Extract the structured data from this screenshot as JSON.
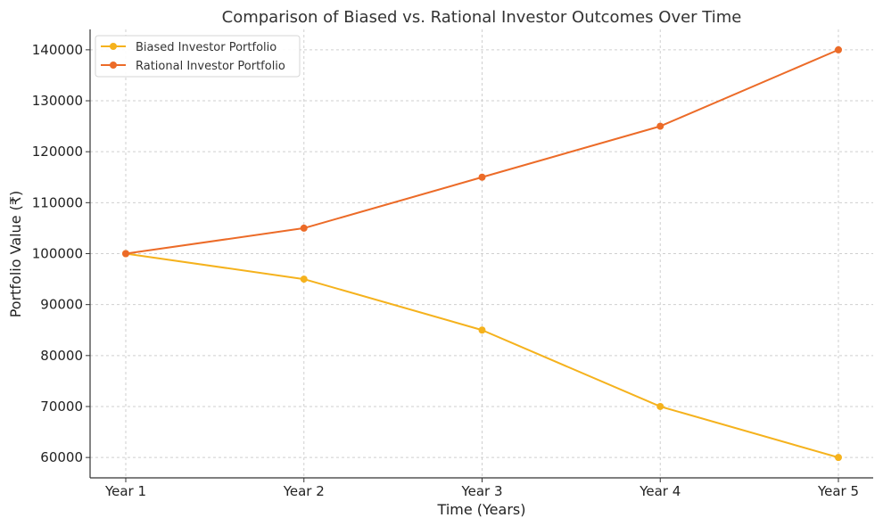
{
  "chart_data": {
    "type": "line",
    "title": "Comparison of Biased vs. Rational Investor Outcomes Over Time",
    "xlabel": "Time (Years)",
    "ylabel": "Portfolio Value (₹)",
    "categories": [
      "Year 1",
      "Year 2",
      "Year 3",
      "Year 4",
      "Year 5"
    ],
    "ylim": [
      56000,
      144000
    ],
    "yticks": [
      60000,
      70000,
      80000,
      90000,
      100000,
      110000,
      120000,
      130000,
      140000
    ],
    "ytick_labels": [
      "60000",
      "70000",
      "80000",
      "90000",
      "100000",
      "110000",
      "120000",
      "130000",
      "140000"
    ],
    "grid": true,
    "legend_position": "top-left",
    "series": [
      {
        "name": "Biased Investor Portfolio",
        "color": "#f5b21d",
        "marker": "circle",
        "values": [
          100000,
          95000,
          85000,
          70000,
          60000
        ]
      },
      {
        "name": "Rational Investor Portfolio",
        "color": "#ec6b28",
        "marker": "circle",
        "values": [
          100000,
          105000,
          115000,
          125000,
          140000
        ]
      }
    ]
  }
}
